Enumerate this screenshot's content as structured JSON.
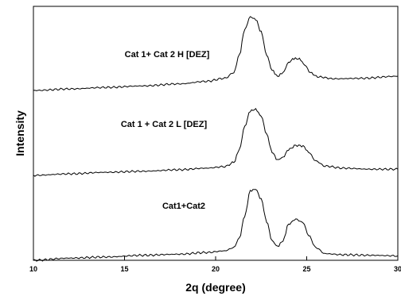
{
  "chart_data": {
    "type": "line",
    "xlabel": "2q (degree)",
    "ylabel": "Intensity",
    "xlim": [
      10,
      30
    ],
    "x_ticks": [
      "10",
      "15",
      "20",
      "25",
      "30"
    ],
    "y_ticks": [],
    "grid": false,
    "series": [
      {
        "name": "Cat 1+ Cat 2 H [DEZ]",
        "points": [
          [
            10,
            0.0
          ],
          [
            12,
            0.3
          ],
          [
            14,
            0.6
          ],
          [
            16,
            0.9
          ],
          [
            18,
            1.3
          ],
          [
            19.5,
            1.8
          ],
          [
            20.5,
            2.4
          ],
          [
            21,
            3.5
          ],
          [
            21.3,
            7
          ],
          [
            21.6,
            12
          ],
          [
            21.9,
            14.5
          ],
          [
            22.2,
            14
          ],
          [
            22.5,
            11.5
          ],
          [
            22.8,
            7
          ],
          [
            23.1,
            4
          ],
          [
            23.4,
            2.8
          ],
          [
            23.7,
            3.5
          ],
          [
            24,
            5.5
          ],
          [
            24.3,
            6.3
          ],
          [
            24.6,
            6.2
          ],
          [
            24.9,
            5
          ],
          [
            25.2,
            3.5
          ],
          [
            25.6,
            2.7
          ],
          [
            26.5,
            2.3
          ],
          [
            28,
            2.4
          ],
          [
            30,
            2.8
          ]
        ]
      },
      {
        "name": "Cat 1 + Cat 2 L [DEZ]",
        "points": [
          [
            10,
            0.0
          ],
          [
            12,
            0.3
          ],
          [
            14,
            0.6
          ],
          [
            16,
            0.8
          ],
          [
            18,
            1.1
          ],
          [
            19.5,
            1.4
          ],
          [
            20.5,
            1.7
          ],
          [
            21,
            2.5
          ],
          [
            21.3,
            5
          ],
          [
            21.6,
            9.5
          ],
          [
            21.9,
            12.5
          ],
          [
            22.2,
            12.8
          ],
          [
            22.5,
            11.5
          ],
          [
            22.8,
            8
          ],
          [
            23.1,
            4.5
          ],
          [
            23.4,
            3
          ],
          [
            23.7,
            3.5
          ],
          [
            24,
            5
          ],
          [
            24.4,
            5.8
          ],
          [
            24.8,
            5.7
          ],
          [
            25.1,
            4.5
          ],
          [
            25.5,
            2.8
          ],
          [
            26,
            1.8
          ],
          [
            27,
            1.4
          ],
          [
            28.5,
            1.2
          ],
          [
            30,
            1.2
          ]
        ]
      },
      {
        "name": "Cat1+Cat2",
        "points": [
          [
            10,
            0.0
          ],
          [
            12,
            0.4
          ],
          [
            14,
            0.6
          ],
          [
            16,
            0.9
          ],
          [
            18,
            1.1
          ],
          [
            19.5,
            1.4
          ],
          [
            20.5,
            1.7
          ],
          [
            21,
            2.3
          ],
          [
            21.3,
            4
          ],
          [
            21.6,
            8
          ],
          [
            21.9,
            12.5
          ],
          [
            22.2,
            12.8
          ],
          [
            22.5,
            11
          ],
          [
            22.8,
            7
          ],
          [
            23.1,
            3.5
          ],
          [
            23.4,
            2.5
          ],
          [
            23.7,
            3.5
          ],
          [
            24,
            6.5
          ],
          [
            24.4,
            7.4
          ],
          [
            24.8,
            6.8
          ],
          [
            25.1,
            4.5
          ],
          [
            25.5,
            2.3
          ],
          [
            26,
            1.2
          ],
          [
            27,
            1.0
          ],
          [
            28.5,
            0.9
          ],
          [
            30,
            0.8
          ]
        ]
      }
    ]
  }
}
